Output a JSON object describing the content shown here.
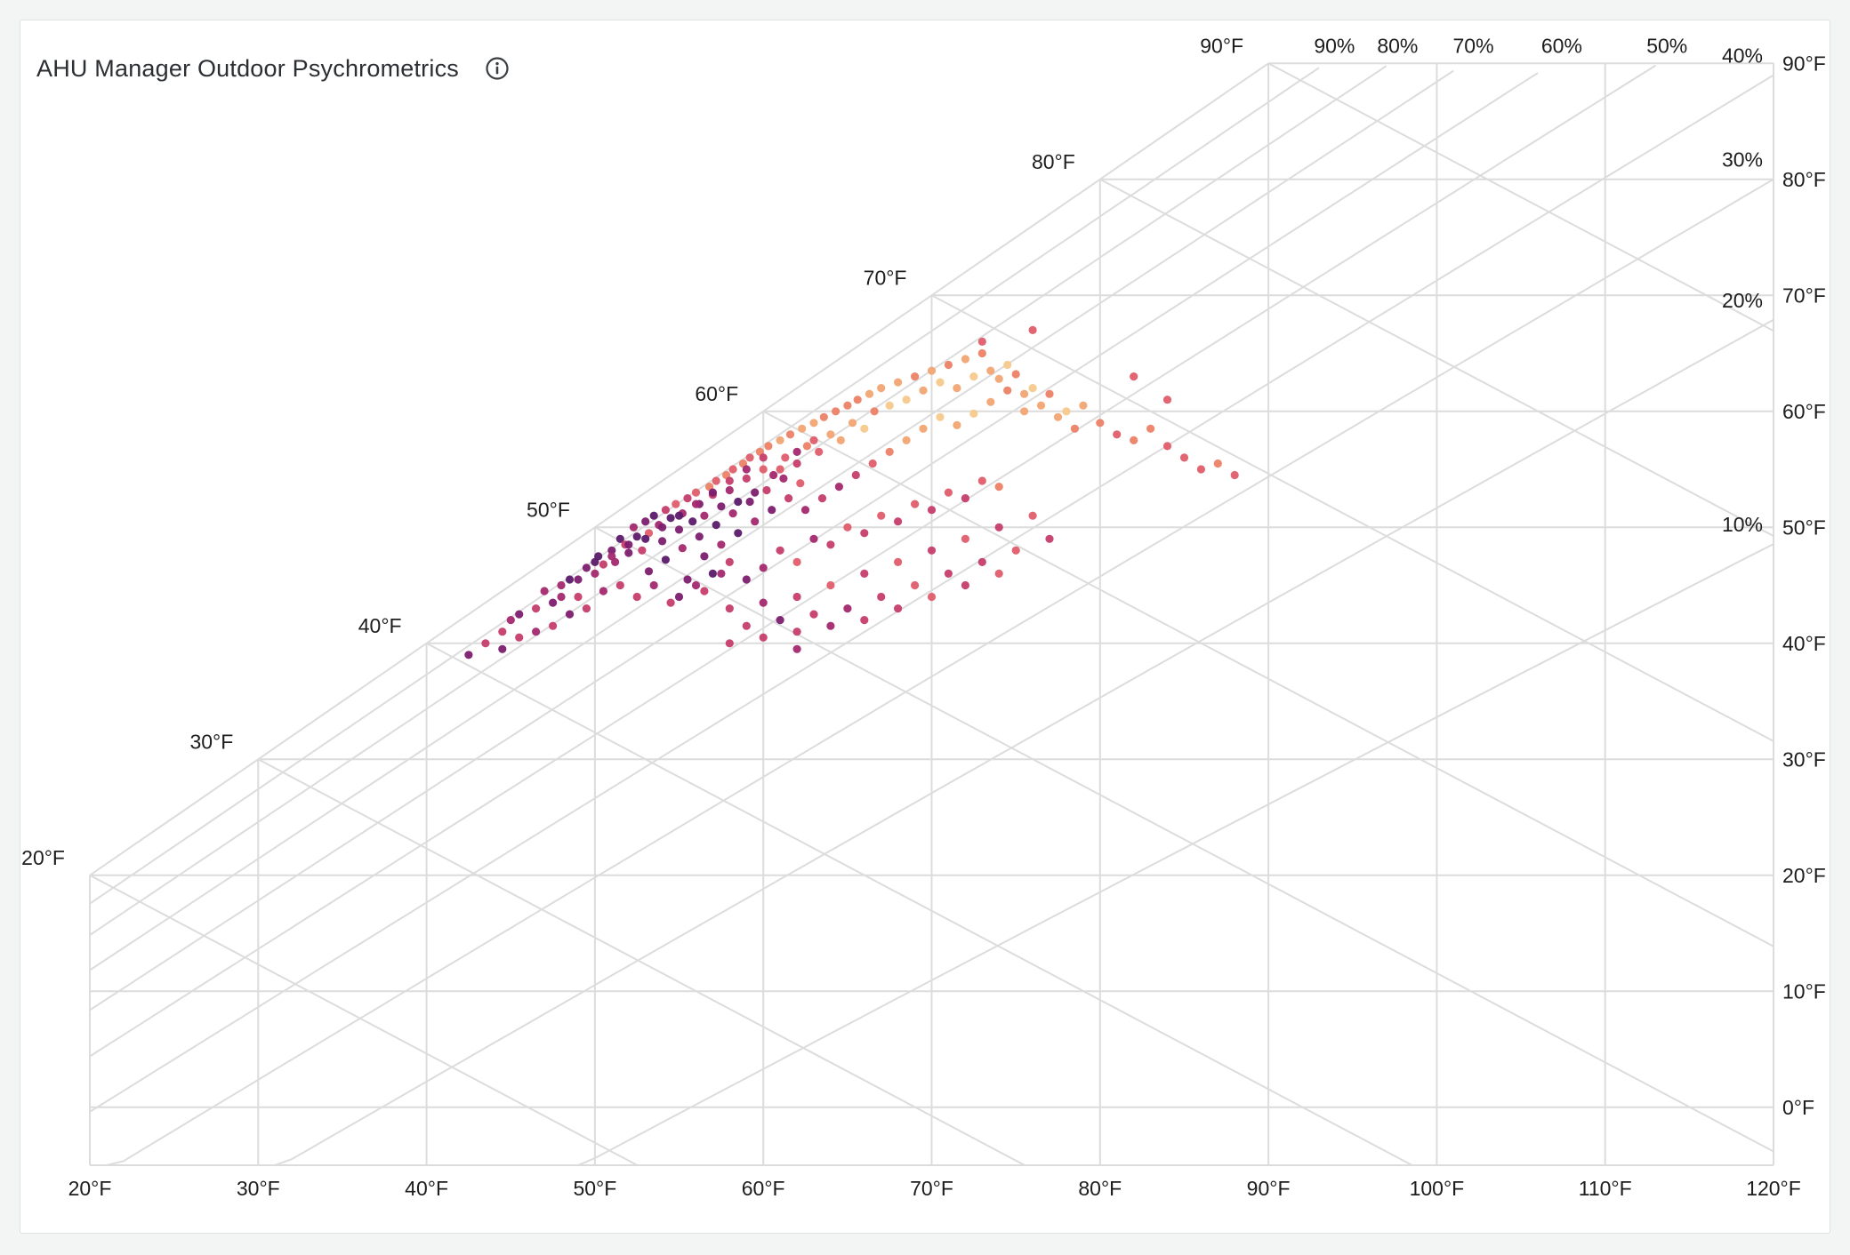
{
  "panel": {
    "title": "AHU Manager Outdoor Psychrometrics",
    "info_icon": "info-circle-icon"
  },
  "chart_data": {
    "type": "scatter",
    "title": "AHU Manager Outdoor Psychrometrics",
    "xlabel": "",
    "ylabel": "",
    "x_unit": "°F dry bulb",
    "xlim": [
      20,
      120
    ],
    "ylim": [
      -5,
      90
    ],
    "x_ticks": [
      "20°F",
      "30°F",
      "40°F",
      "50°F",
      "60°F",
      "70°F",
      "80°F",
      "90°F",
      "100°F",
      "110°F",
      "120°F"
    ],
    "x_tick_values": [
      20,
      30,
      40,
      50,
      60,
      70,
      80,
      90,
      100,
      110,
      120
    ],
    "right_ticks": [
      {
        "label": "90°F",
        "value": 90
      },
      {
        "label": "80°F",
        "value": 80
      },
      {
        "label": "70°F",
        "value": 70
      },
      {
        "label": "60°F",
        "value": 60
      },
      {
        "label": "50°F",
        "value": 50
      },
      {
        "label": "40°F",
        "value": 40
      },
      {
        "label": "30°F",
        "value": 30
      },
      {
        "label": "20°F",
        "value": 20
      },
      {
        "label": "10°F",
        "value": 10
      },
      {
        "label": "0°F",
        "value": 0
      }
    ],
    "wet_bulb_labels": [
      {
        "label": "20°F",
        "value": 20
      },
      {
        "label": "30°F",
        "value": 30
      },
      {
        "label": "40°F",
        "value": 40
      },
      {
        "label": "50°F",
        "value": 50
      },
      {
        "label": "60°F",
        "value": 60
      },
      {
        "label": "70°F",
        "value": 70
      },
      {
        "label": "80°F",
        "value": 80
      },
      {
        "label": "90°F",
        "value": 90
      }
    ],
    "rh_top_labels": [
      {
        "label": "90%",
        "value": 90
      },
      {
        "label": "80%",
        "value": 80
      },
      {
        "label": "70%",
        "value": 70
      },
      {
        "label": "60%",
        "value": 60
      },
      {
        "label": "50%",
        "value": 50
      }
    ],
    "rh_side_labels": [
      {
        "label": "40%",
        "value": 40
      },
      {
        "label": "30%",
        "value": 30
      },
      {
        "label": "20%",
        "value": 20
      },
      {
        "label": "10%",
        "value": 10
      }
    ],
    "grid": true,
    "colors": {
      "grid": "#dcdcdc",
      "point_scale": [
        "#5b1a6b",
        "#7c1d6f",
        "#a3296f",
        "#c63d6b",
        "#df5d6c",
        "#ec8166",
        "#f2a574",
        "#f6c98c"
      ]
    },
    "points": [
      [
        43.5,
        40,
        3
      ],
      [
        42.5,
        39,
        1
      ],
      [
        44.5,
        41,
        3
      ],
      [
        45,
        42,
        2
      ],
      [
        45.5,
        42.5,
        1
      ],
      [
        46.5,
        43,
        3
      ],
      [
        47,
        44.5,
        2
      ],
      [
        47.5,
        43.5,
        1
      ],
      [
        48,
        45,
        2
      ],
      [
        48.5,
        45.5,
        0
      ],
      [
        49,
        44,
        3
      ],
      [
        49.5,
        46.5,
        1
      ],
      [
        50,
        46,
        2
      ],
      [
        50.2,
        47.5,
        0
      ],
      [
        50.5,
        46.8,
        3
      ],
      [
        51,
        48,
        1
      ],
      [
        51.2,
        47,
        2
      ],
      [
        51.5,
        49,
        0
      ],
      [
        51.8,
        48.5,
        3
      ],
      [
        52,
        47.8,
        1
      ],
      [
        52.3,
        50,
        2
      ],
      [
        52.5,
        49.2,
        0
      ],
      [
        52.8,
        48,
        3
      ],
      [
        53,
        50.5,
        1
      ],
      [
        53.2,
        49.5,
        4
      ],
      [
        53.5,
        51,
        0
      ],
      [
        53.8,
        50.2,
        2
      ],
      [
        54,
        48.8,
        1
      ],
      [
        54.2,
        51.5,
        3
      ],
      [
        54.5,
        50.8,
        0
      ],
      [
        54.8,
        52,
        4
      ],
      [
        55,
        49.8,
        1
      ],
      [
        55.2,
        51.2,
        2
      ],
      [
        55.5,
        52.5,
        3
      ],
      [
        55.8,
        50.5,
        0
      ],
      [
        56,
        53,
        4
      ],
      [
        56.2,
        52,
        1
      ],
      [
        56.5,
        51,
        2
      ],
      [
        56.8,
        53.5,
        5
      ],
      [
        57,
        52.8,
        3
      ],
      [
        57.2,
        54,
        4
      ],
      [
        57.5,
        51.8,
        1
      ],
      [
        57.8,
        54.5,
        5
      ],
      [
        58,
        53.2,
        2
      ],
      [
        58.2,
        55,
        4
      ],
      [
        58.5,
        52.2,
        0
      ],
      [
        58.8,
        55.5,
        5
      ],
      [
        59,
        54.2,
        3
      ],
      [
        59.2,
        56,
        4
      ],
      [
        59.5,
        53,
        1
      ],
      [
        59.8,
        56.5,
        5
      ],
      [
        60,
        55,
        4
      ],
      [
        60.3,
        57,
        5
      ],
      [
        60.6,
        54.5,
        2
      ],
      [
        61,
        57.5,
        6
      ],
      [
        61.3,
        56,
        4
      ],
      [
        61.6,
        58,
        5
      ],
      [
        62,
        55.5,
        3
      ],
      [
        62.3,
        58.5,
        6
      ],
      [
        62.6,
        57,
        5
      ],
      [
        63,
        59,
        6
      ],
      [
        63.3,
        56.5,
        4
      ],
      [
        63.6,
        59.5,
        5
      ],
      [
        64,
        58,
        6
      ],
      [
        64.3,
        60,
        5
      ],
      [
        64.6,
        57.5,
        6
      ],
      [
        65,
        60.5,
        5
      ],
      [
        65.3,
        59,
        6
      ],
      [
        65.6,
        61,
        5
      ],
      [
        66,
        58.5,
        7
      ],
      [
        66.3,
        61.5,
        6
      ],
      [
        66.6,
        60,
        5
      ],
      [
        67,
        62,
        6
      ],
      [
        67.5,
        60.5,
        7
      ],
      [
        68,
        62.5,
        6
      ],
      [
        68.5,
        61,
        7
      ],
      [
        69,
        63,
        5
      ],
      [
        69.5,
        61.8,
        6
      ],
      [
        70,
        63.5,
        6
      ],
      [
        70.5,
        62.5,
        7
      ],
      [
        71,
        64,
        5
      ],
      [
        71.5,
        62,
        6
      ],
      [
        72,
        64.5,
        6
      ],
      [
        72.5,
        63,
        7
      ],
      [
        73,
        65,
        5
      ],
      [
        73.5,
        63.5,
        6
      ],
      [
        74,
        62.8,
        6
      ],
      [
        74.5,
        64,
        7
      ],
      [
        75,
        63.2,
        5
      ],
      [
        75.5,
        61.5,
        6
      ],
      [
        76,
        62,
        7
      ],
      [
        76.5,
        60.5,
        6
      ],
      [
        77,
        61.5,
        5
      ],
      [
        77.5,
        59.5,
        6
      ],
      [
        78,
        60,
        7
      ],
      [
        78.5,
        58.5,
        5
      ],
      [
        79,
        60.5,
        6
      ],
      [
        80,
        59,
        5
      ],
      [
        81,
        58,
        4
      ],
      [
        82,
        57.5,
        5
      ],
      [
        83,
        58.5,
        5
      ],
      [
        84,
        57,
        4
      ],
      [
        85,
        56,
        4
      ],
      [
        86,
        55,
        4
      ],
      [
        87,
        55.5,
        5
      ],
      [
        88,
        54.5,
        4
      ],
      [
        76,
        67,
        4
      ],
      [
        73,
        66,
        4
      ],
      [
        82,
        63,
        4
      ],
      [
        84,
        61,
        4
      ],
      [
        55,
        44,
        1
      ],
      [
        56,
        45,
        2
      ],
      [
        57,
        46,
        0
      ],
      [
        58,
        47,
        3
      ],
      [
        59,
        45.5,
        1
      ],
      [
        60,
        46.5,
        2
      ],
      [
        61,
        48,
        3
      ],
      [
        62,
        47,
        4
      ],
      [
        63,
        49,
        2
      ],
      [
        64,
        48.5,
        3
      ],
      [
        65,
        50,
        4
      ],
      [
        66,
        49.5,
        3
      ],
      [
        67,
        51,
        4
      ],
      [
        68,
        50.5,
        3
      ],
      [
        69,
        52,
        4
      ],
      [
        70,
        51.5,
        3
      ],
      [
        71,
        53,
        4
      ],
      [
        72,
        52.5,
        3
      ],
      [
        73,
        54,
        4
      ],
      [
        74,
        53.5,
        5
      ],
      [
        58,
        43,
        3
      ],
      [
        60,
        43.5,
        2
      ],
      [
        62,
        44,
        3
      ],
      [
        64,
        45,
        4
      ],
      [
        66,
        46,
        3
      ],
      [
        68,
        47,
        4
      ],
      [
        70,
        48,
        3
      ],
      [
        72,
        49,
        4
      ],
      [
        74,
        50,
        3
      ],
      [
        76,
        51,
        4
      ],
      [
        59,
        41.5,
        3
      ],
      [
        61,
        42,
        1
      ],
      [
        63,
        42.5,
        3
      ],
      [
        65,
        43,
        2
      ],
      [
        67,
        44,
        3
      ],
      [
        69,
        45,
        4
      ],
      [
        71,
        46,
        3
      ],
      [
        73,
        47,
        3
      ],
      [
        75,
        48,
        4
      ],
      [
        77,
        49,
        3
      ],
      [
        62,
        41,
        3
      ],
      [
        64,
        41.5,
        2
      ],
      [
        66,
        42,
        3
      ],
      [
        68,
        43,
        3
      ],
      [
        70,
        44,
        4
      ],
      [
        72,
        45,
        3
      ],
      [
        74,
        46,
        4
      ],
      [
        58,
        40,
        3
      ],
      [
        60,
        40.5,
        3
      ],
      [
        62,
        39.5,
        2
      ],
      [
        52.5,
        44,
        3
      ],
      [
        53.5,
        45,
        2
      ],
      [
        54.5,
        43.5,
        3
      ],
      [
        55.5,
        45.5,
        1
      ],
      [
        56.5,
        44.5,
        3
      ],
      [
        57.5,
        46,
        2
      ],
      [
        51.5,
        45,
        3
      ],
      [
        50.5,
        44.5,
        2
      ],
      [
        49.5,
        43,
        3
      ],
      [
        48.5,
        42.5,
        1
      ],
      [
        47.5,
        41.5,
        3
      ],
      [
        46.5,
        41,
        2
      ],
      [
        45.5,
        40.5,
        3
      ],
      [
        44.5,
        39.5,
        1
      ],
      [
        48,
        44,
        2
      ],
      [
        49,
        45.5,
        1
      ],
      [
        50,
        47,
        0
      ],
      [
        51,
        47.5,
        2
      ],
      [
        52,
        48.5,
        1
      ],
      [
        53,
        49,
        0
      ],
      [
        54,
        50,
        1
      ],
      [
        55,
        51,
        0
      ],
      [
        56,
        52,
        2
      ],
      [
        57,
        53,
        1
      ],
      [
        58,
        54,
        3
      ],
      [
        59,
        55,
        2
      ],
      [
        60,
        56,
        3
      ],
      [
        61,
        55,
        4
      ],
      [
        62,
        56.5,
        2
      ],
      [
        63,
        57.5,
        4
      ],
      [
        53.2,
        46.2,
        1
      ],
      [
        54.2,
        47.2,
        0
      ],
      [
        55.2,
        48.2,
        2
      ],
      [
        56.2,
        49.2,
        1
      ],
      [
        57.2,
        50.2,
        0
      ],
      [
        58.2,
        51.2,
        2
      ],
      [
        59.2,
        52.2,
        1
      ],
      [
        60.2,
        53.2,
        3
      ],
      [
        61.2,
        54.2,
        2
      ],
      [
        62.2,
        53.8,
        4
      ],
      [
        56.5,
        47.5,
        1
      ],
      [
        57.5,
        48.5,
        2
      ],
      [
        58.5,
        49.5,
        0
      ],
      [
        59.5,
        50.5,
        2
      ],
      [
        60.5,
        51.5,
        1
      ],
      [
        61.5,
        52.5,
        3
      ],
      [
        62.5,
        51.5,
        2
      ],
      [
        63.5,
        52.5,
        3
      ],
      [
        64.5,
        53.5,
        2
      ],
      [
        65.5,
        54.5,
        3
      ],
      [
        66.5,
        55.5,
        4
      ],
      [
        67.5,
        56.5,
        5
      ],
      [
        68.5,
        57.5,
        6
      ],
      [
        69.5,
        58.5,
        6
      ],
      [
        70.5,
        59.5,
        7
      ],
      [
        71.5,
        58.8,
        6
      ],
      [
        72.5,
        59.8,
        7
      ],
      [
        73.5,
        60.8,
        6
      ],
      [
        74.5,
        61.8,
        5
      ],
      [
        75.5,
        60,
        6
      ]
    ]
  }
}
